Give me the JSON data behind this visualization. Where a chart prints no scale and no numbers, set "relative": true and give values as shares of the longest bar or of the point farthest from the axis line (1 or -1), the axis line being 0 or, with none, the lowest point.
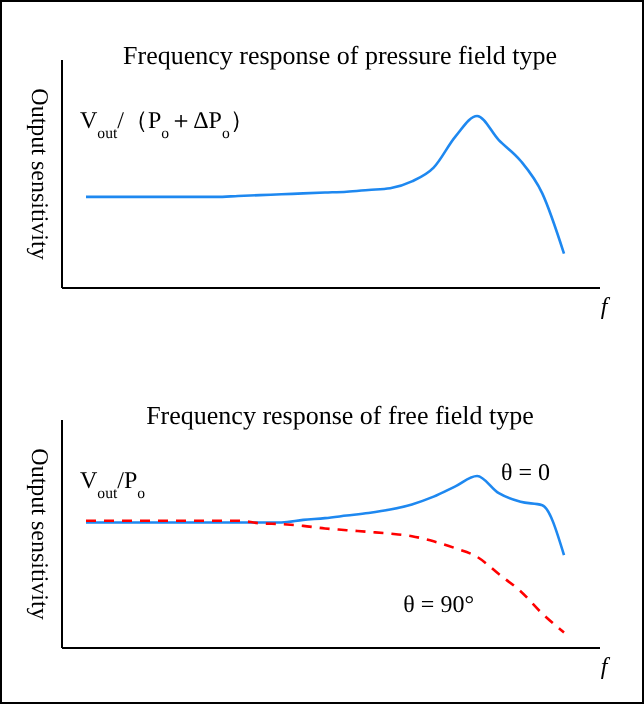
{
  "chart_data": [
    {
      "type": "line",
      "title": "Frequency response of pressure field type",
      "ylabel": "Output sensitivity",
      "xlabel": "f",
      "relative": true,
      "annotations": [
        "V$_{out}$/（P$_{o}$＋ΔP$_{o}$）"
      ],
      "categories": [
        null,
        null,
        null,
        null,
        null,
        null,
        null,
        null,
        null,
        null,
        null,
        null,
        null,
        null,
        null,
        null,
        null,
        null,
        null,
        null,
        null,
        null,
        null
      ],
      "series": [
        {
          "color": "#1e88f0",
          "line_style": "solid",
          "values": [
            0.53,
            0.53,
            0.53,
            0.53,
            0.53,
            0.53,
            0.53,
            0.535,
            0.54,
            0.545,
            0.55,
            0.555,
            0.56,
            0.57,
            0.58,
            0.62,
            0.7,
            0.88,
            1.0,
            0.86,
            0.74,
            0.55,
            0.2
          ]
        }
      ]
    },
    {
      "type": "line",
      "title": "Frequency response of free field type",
      "ylabel": "Output sensitivity",
      "xlabel": "f",
      "relative": true,
      "annotations": [
        "V$_{out}$/P$_{o}$"
      ],
      "categories": [
        null,
        null,
        null,
        null,
        null,
        null,
        null,
        null,
        null,
        null,
        null,
        null,
        null,
        null,
        null,
        null,
        null,
        null,
        null,
        null,
        null,
        null,
        null
      ],
      "series": [
        {
          "name": "θ = 0",
          "color": "#1e88f0",
          "line_style": "solid",
          "values": [
            0.73,
            0.73,
            0.73,
            0.73,
            0.73,
            0.73,
            0.73,
            0.73,
            0.73,
            0.73,
            0.745,
            0.755,
            0.77,
            0.785,
            0.805,
            0.835,
            0.88,
            0.94,
            1.0,
            0.9,
            0.85,
            0.83,
            0.54
          ]
        },
        {
          "name": "θ = 90°",
          "color": "#ff0000",
          "line_style": "dashed",
          "values": [
            0.74,
            0.74,
            0.74,
            0.74,
            0.74,
            0.74,
            0.74,
            0.74,
            0.725,
            0.72,
            0.71,
            0.695,
            0.685,
            0.675,
            0.665,
            0.65,
            0.62,
            0.58,
            0.53,
            0.43,
            0.33,
            0.2,
            0.09
          ]
        }
      ]
    }
  ]
}
